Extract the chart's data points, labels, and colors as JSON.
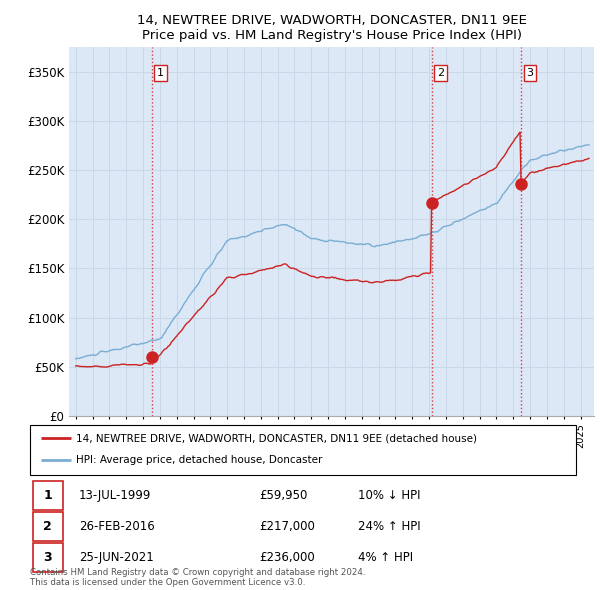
{
  "title": "14, NEWTREE DRIVE, WADWORTH, DONCASTER, DN11 9EE",
  "subtitle": "Price paid vs. HM Land Registry's House Price Index (HPI)",
  "ylabel_ticks": [
    "£0",
    "£50K",
    "£100K",
    "£150K",
    "£200K",
    "£250K",
    "£300K",
    "£350K"
  ],
  "ytick_values": [
    0,
    50000,
    100000,
    150000,
    200000,
    250000,
    300000,
    350000
  ],
  "ylim": [
    0,
    375000
  ],
  "xlim_start": 1994.6,
  "xlim_end": 2025.8,
  "hpi_color": "#7aadd4",
  "price_color": "#cc2222",
  "vline_color": "#cc2222",
  "plot_bg_color": "#dce8f5",
  "sale_points": [
    {
      "year": 1999.54,
      "price": 59950,
      "label": "1"
    },
    {
      "year": 2016.15,
      "price": 217000,
      "label": "2"
    },
    {
      "year": 2021.48,
      "price": 236000,
      "label": "3"
    }
  ],
  "vline_years": [
    1999.54,
    2016.15,
    2021.48
  ],
  "legend_entries": [
    {
      "label": "14, NEWTREE DRIVE, WADWORTH, DONCASTER, DN11 9EE (detached house)",
      "color": "#cc2222"
    },
    {
      "label": "HPI: Average price, detached house, Doncaster",
      "color": "#7aadd4"
    }
  ],
  "table_rows": [
    {
      "num": "1",
      "date": "13-JUL-1999",
      "price": "£59,950",
      "rel": "10% ↓ HPI"
    },
    {
      "num": "2",
      "date": "26-FEB-2016",
      "price": "£217,000",
      "rel": "24% ↑ HPI"
    },
    {
      "num": "3",
      "date": "25-JUN-2021",
      "price": "£236,000",
      "rel": "4% ↑ HPI"
    }
  ],
  "footer": "Contains HM Land Registry data © Crown copyright and database right 2024.\nThis data is licensed under the Open Government Licence v3.0.",
  "background_color": "#ffffff",
  "grid_color": "#c8d8e8"
}
